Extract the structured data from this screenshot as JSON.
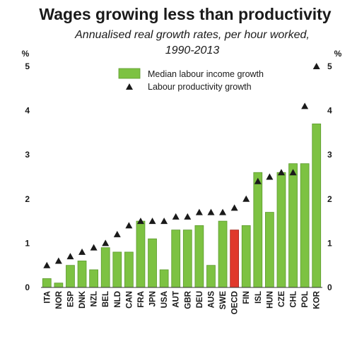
{
  "chart_data": {
    "type": "bar",
    "title": "Wages growing less than productivity",
    "subtitle_line1": "Annualised real growth rates, per hour worked,",
    "subtitle_line2": "1990-2013",
    "ylabel_left": "%",
    "ylabel_right": "%",
    "ylim": [
      0,
      5
    ],
    "yticks": [
      0,
      1,
      2,
      3,
      4,
      5
    ],
    "legend_position": "top-center",
    "categories": [
      "ITA",
      "NOR",
      "ESP",
      "DNK",
      "NZL",
      "BEL",
      "NLD",
      "CAN",
      "FRA",
      "JPN",
      "USA",
      "AUT",
      "GBR",
      "DEU",
      "AUS",
      "SWE",
      "OECD",
      "FIN",
      "ISL",
      "HUN",
      "CZE",
      "CHL",
      "POL",
      "KOR"
    ],
    "highlight_category": "OECD",
    "series": [
      {
        "name": "Median labour income growth",
        "kind": "bar",
        "color": "#7dc242",
        "highlight_color": "#e0392b",
        "values": [
          0.2,
          0.1,
          0.5,
          0.6,
          0.4,
          0.9,
          0.8,
          0.8,
          1.5,
          1.1,
          0.4,
          1.3,
          1.3,
          1.4,
          0.5,
          1.5,
          1.3,
          1.4,
          2.6,
          1.7,
          2.6,
          2.8,
          2.8,
          3.7
        ]
      },
      {
        "name": "Labour productivity growth",
        "kind": "marker",
        "marker": "triangle",
        "color": "#1a1a1a",
        "values": [
          0.5,
          0.6,
          0.7,
          0.8,
          0.9,
          1.0,
          1.2,
          1.4,
          1.5,
          1.5,
          1.5,
          1.6,
          1.6,
          1.7,
          1.7,
          1.7,
          1.8,
          2.0,
          2.4,
          2.5,
          2.6,
          2.6,
          4.1,
          5.0
        ]
      }
    ]
  }
}
